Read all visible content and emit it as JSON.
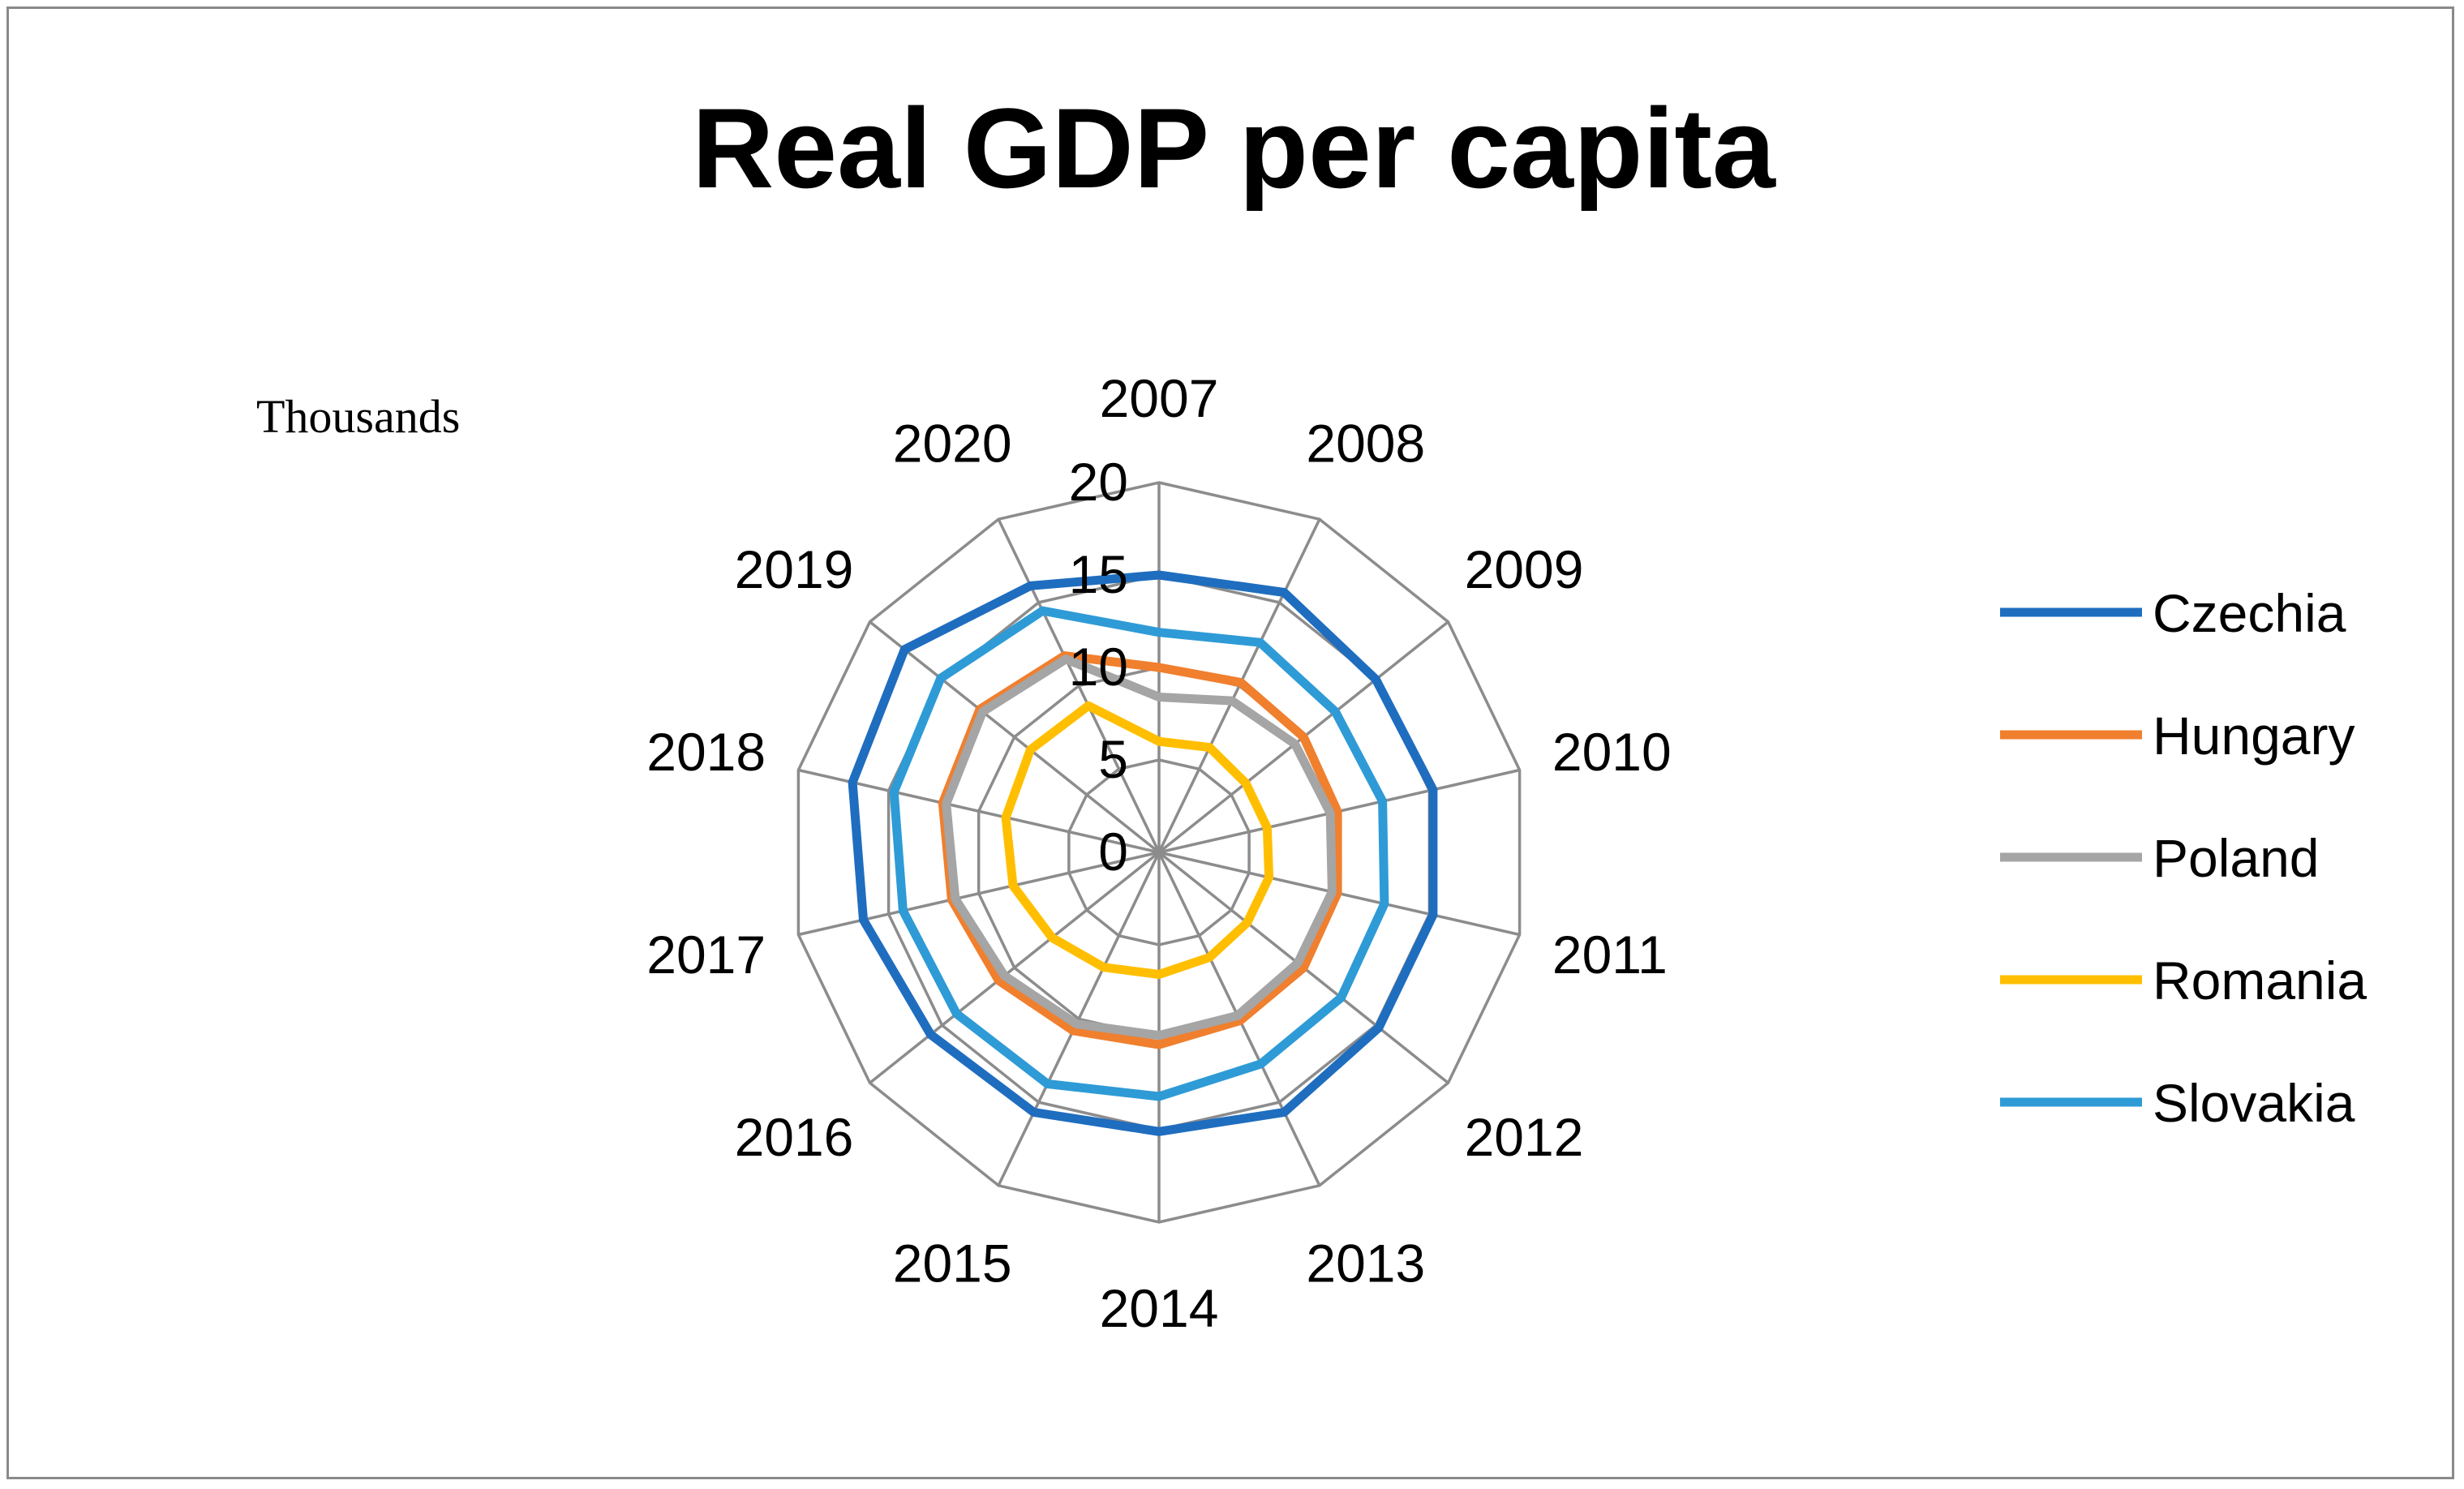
{
  "chart_data": {
    "type": "radar",
    "title": "Real GDP per capita",
    "units_label": "Thousands",
    "categories": [
      "2007",
      "2008",
      "2009",
      "2010",
      "2011",
      "2012",
      "2013",
      "2014",
      "2015",
      "2016",
      "2017",
      "2018",
      "2019",
      "2020"
    ],
    "r_range": [
      0,
      20
    ],
    "r_ticks": [
      "0",
      "5",
      "10",
      "15",
      "20"
    ],
    "grid": true,
    "legend_position": "right",
    "series": [
      {
        "name": "Czechia",
        "color": "#1f6dbf",
        "values": [
          15.0,
          15.6,
          15.0,
          15.2,
          15.2,
          15.2,
          15.6,
          15.1,
          15.6,
          15.8,
          16.4,
          17.0,
          17.6,
          16.0
        ]
      },
      {
        "name": "Hungary",
        "color": "#f07f2e",
        "values": [
          10.0,
          10.2,
          10.0,
          9.9,
          9.9,
          10.0,
          10.1,
          10.4,
          10.7,
          11.1,
          11.5,
          12.0,
          12.4,
          11.8
        ]
      },
      {
        "name": "Poland",
        "color": "#a5a5a5",
        "values": [
          8.4,
          9.1,
          9.4,
          9.5,
          9.6,
          9.6,
          9.8,
          9.9,
          10.3,
          10.7,
          11.3,
          11.8,
          12.2,
          11.6
        ]
      },
      {
        "name": "Romania",
        "color": "#ffbf00",
        "values": [
          6.0,
          6.3,
          6.0,
          6.0,
          6.1,
          6.1,
          6.3,
          6.6,
          6.9,
          7.4,
          8.1,
          8.5,
          8.9,
          8.8
        ]
      },
      {
        "name": "Slovakia",
        "color": "#2e9bd6",
        "values": [
          11.9,
          12.6,
          12.2,
          12.4,
          12.5,
          12.6,
          12.7,
          13.2,
          13.9,
          14.0,
          14.2,
          14.7,
          15.1,
          14.5
        ]
      }
    ]
  }
}
